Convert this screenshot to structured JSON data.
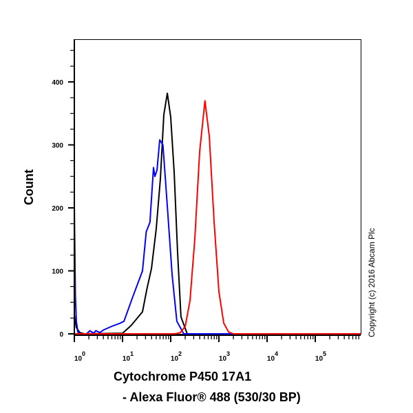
{
  "chart_data": {
    "type": "line",
    "xlabel_lines": [
      "Cytochrome P450 17A1",
      "- Alexa Fluor® 488 (530/30 BP)"
    ],
    "ylabel": "Count",
    "x_scale": "log",
    "xlim": [
      1,
      870000
    ],
    "ylim": [
      0,
      467
    ],
    "x_ticks": [
      {
        "base": "10",
        "exp": "0",
        "value": 1
      },
      {
        "base": "10",
        "exp": "1",
        "value": 10
      },
      {
        "base": "10",
        "exp": "2",
        "value": 100
      },
      {
        "base": "10",
        "exp": "3",
        "value": 1000
      },
      {
        "base": "10",
        "exp": "4",
        "value": 10000
      },
      {
        "base": "10",
        "exp": "5",
        "value": 100000
      }
    ],
    "y_ticks": [
      "0",
      "100",
      "200",
      "300",
      "400"
    ],
    "y_minor_step": 25,
    "grid": false,
    "legend": "none",
    "series": [
      {
        "color": "#000000",
        "points": [
          [
            1,
            30
          ],
          [
            1.1,
            10
          ],
          [
            1.3,
            2
          ],
          [
            1.6,
            0
          ],
          [
            10,
            1
          ],
          [
            15,
            13
          ],
          [
            26,
            35
          ],
          [
            32,
            71
          ],
          [
            40,
            104
          ],
          [
            50,
            166
          ],
          [
            61,
            246
          ],
          [
            72,
            348
          ],
          [
            85,
            382
          ],
          [
            100,
            344
          ],
          [
            118,
            257
          ],
          [
            139,
            129
          ],
          [
            163,
            27
          ],
          [
            220,
            0
          ],
          [
            870000,
            0
          ]
        ]
      },
      {
        "color": "#0000ff",
        "points": [
          [
            1,
            205
          ],
          [
            1.05,
            60
          ],
          [
            1.1,
            20
          ],
          [
            1.18,
            3
          ],
          [
            1.3,
            0
          ],
          [
            1.8,
            0
          ],
          [
            2.1,
            5
          ],
          [
            2.5,
            1
          ],
          [
            2.8,
            5
          ],
          [
            3.4,
            2
          ],
          [
            4,
            6
          ],
          [
            6,
            12
          ],
          [
            9,
            17
          ],
          [
            10.7,
            20
          ],
          [
            16,
            57
          ],
          [
            26,
            100
          ],
          [
            31,
            162
          ],
          [
            37,
            177
          ],
          [
            44,
            264
          ],
          [
            47,
            250
          ],
          [
            52,
            260
          ],
          [
            59,
            308
          ],
          [
            69,
            300
          ],
          [
            85,
            202
          ],
          [
            107,
            93
          ],
          [
            134,
            20
          ],
          [
            186,
            0
          ],
          [
            870000,
            0
          ]
        ]
      },
      {
        "color": "#ff0000",
        "points": [
          [
            1,
            0
          ],
          [
            100,
            0
          ],
          [
            126,
            0.2
          ],
          [
            158,
            2
          ],
          [
            200,
            12
          ],
          [
            251,
            53
          ],
          [
            316,
            151
          ],
          [
            398,
            289
          ],
          [
            513,
            370
          ],
          [
            631,
            314
          ],
          [
            794,
            178
          ],
          [
            1000,
            67
          ],
          [
            1259,
            17
          ],
          [
            1585,
            3
          ],
          [
            1995,
            0
          ],
          [
            870000,
            0
          ]
        ]
      }
    ]
  },
  "watermark": "Copyright (c) 2016 Abcam Plc"
}
